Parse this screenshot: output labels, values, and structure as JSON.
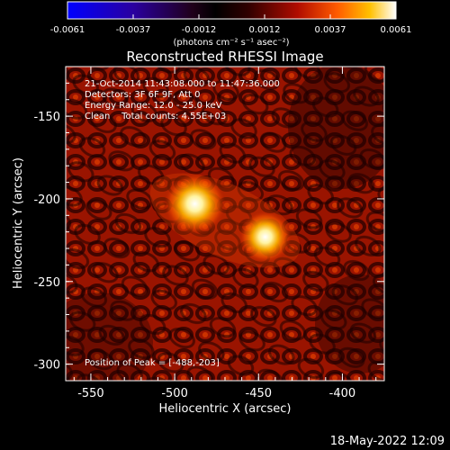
{
  "colorbar": {
    "tick_labels": [
      "-0.0061",
      "-0.0037",
      "-0.0012",
      "0.0012",
      "0.0037",
      "0.0061"
    ],
    "unit_label": "(photons cm⁻² s⁻¹ asec⁻²)",
    "colors": [
      "#0000ff",
      "#3a0078",
      "#000000",
      "#6e0000",
      "#d21e00",
      "#ff8c00",
      "#ffffff"
    ]
  },
  "image": {
    "title": "Reconstructed RHESSI Image",
    "info_lines": [
      "21-Oct-2014 11:43:08.000 to 11:47:36.000",
      "Detectors: 3F 6F 9F, Att 0",
      "Energy Range: 12.0 - 25.0 keV",
      "Clean    Total counts: 4.55E+03"
    ],
    "peak_label": "Position of Peak = [-488,-203]",
    "x_axis": {
      "label": "Heliocentric X (arcsec)",
      "ticks": [
        "-550",
        "-500",
        "-450",
        "-400"
      ],
      "range": [
        -565,
        -375
      ]
    },
    "y_axis": {
      "label": "Heliocentric Y (arcsec)",
      "ticks": [
        "-150",
        "-200",
        "-250",
        "-300"
      ],
      "range": [
        -310,
        -120
      ]
    },
    "sources": [
      {
        "x": -488,
        "y": -203,
        "intensity": 1.0
      },
      {
        "x": -446,
        "y": -223,
        "intensity": 0.85
      }
    ]
  },
  "footer": {
    "timestamp": "18-May-2022 12:09"
  }
}
